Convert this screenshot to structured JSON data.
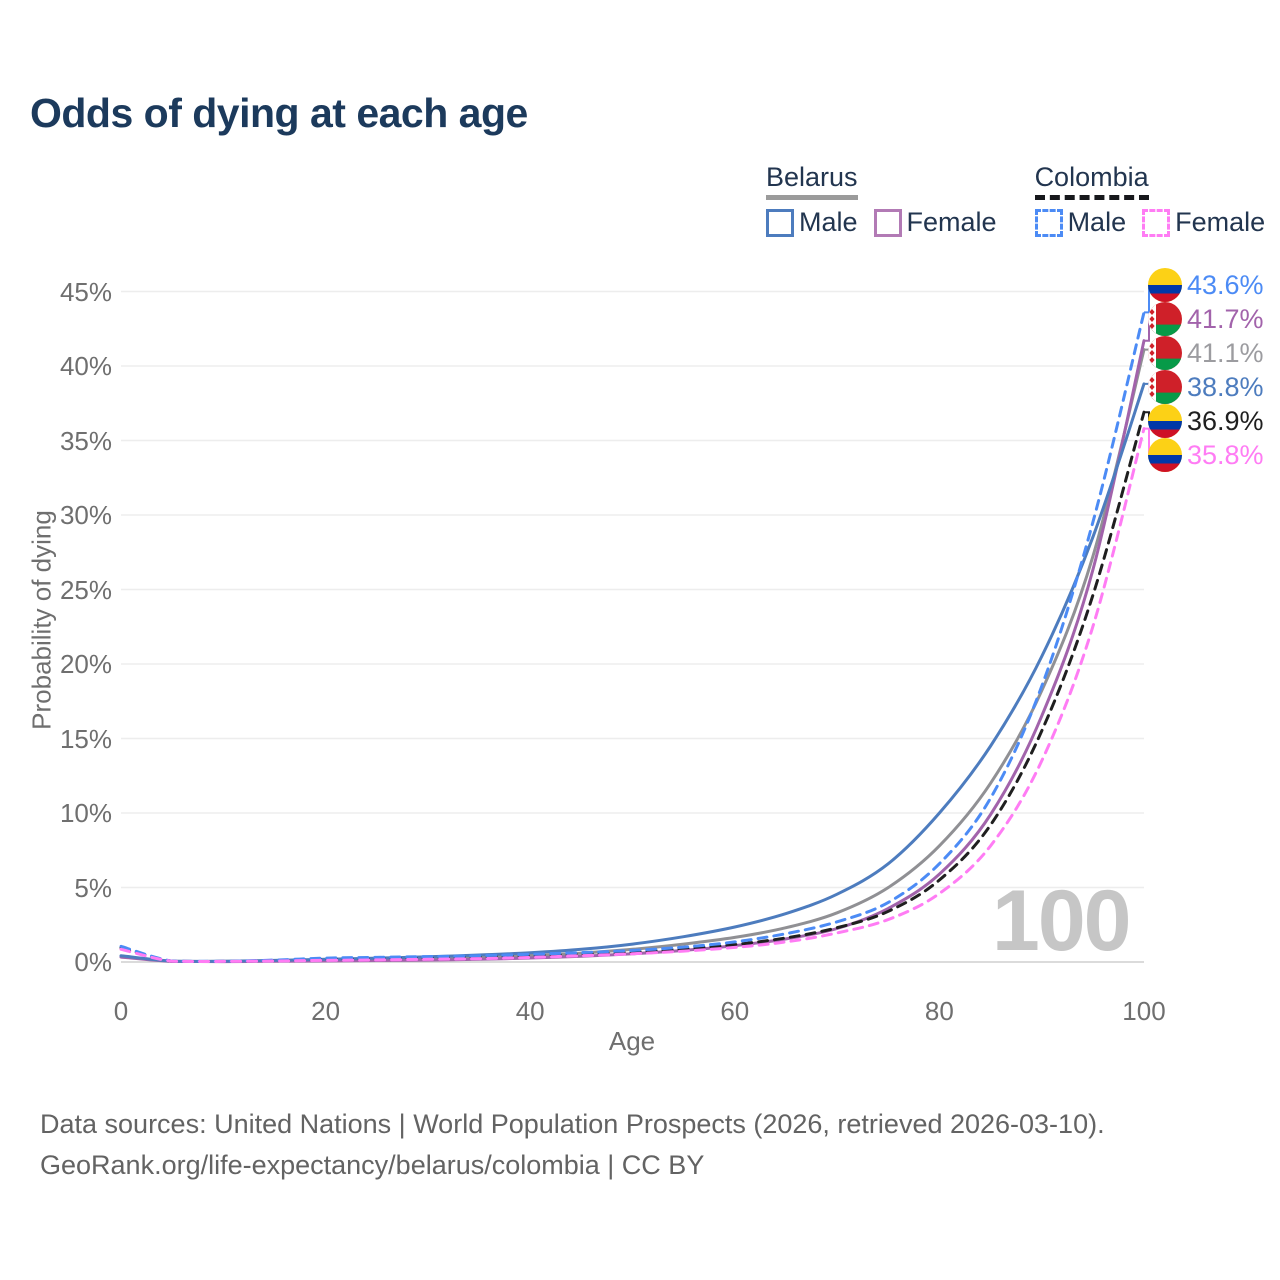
{
  "title": "Odds of dying at each age",
  "legend": {
    "groups": [
      {
        "country": "Belarus",
        "style": "solid",
        "underline_color": "#9b9b9b",
        "items": [
          {
            "label": "Male",
            "color": "#4d7cbe"
          },
          {
            "label": "Female",
            "color": "#b27ab5"
          }
        ]
      },
      {
        "country": "Colombia",
        "style": "dashed",
        "underline_color": "#17181c",
        "items": [
          {
            "label": "Male",
            "color": "#4c8bf5"
          },
          {
            "label": "Female",
            "color": "#ff7cf4"
          }
        ]
      }
    ]
  },
  "axes": {
    "x": {
      "title": "Age",
      "ticks": [
        0,
        20,
        40,
        60,
        80,
        100
      ],
      "min": 0,
      "max": 100
    },
    "y": {
      "title": "Probability of dying",
      "ticks": [
        "0%",
        "5%",
        "10%",
        "15%",
        "20%",
        "25%",
        "30%",
        "35%",
        "40%",
        "45%"
      ],
      "tick_values": [
        0,
        5,
        10,
        15,
        20,
        25,
        30,
        35,
        40,
        45
      ],
      "min": 0,
      "max": 45
    }
  },
  "watermark": "100",
  "footer": {
    "line1": "Data sources: United Nations | World Population Prospects (2026, retrieved 2026-03-10).",
    "line2": "GeoRank.org/life-expectancy/belarus/colombia | CC BY"
  },
  "chart_data": {
    "type": "line",
    "title": "Odds of dying at each age",
    "xlabel": "Age",
    "ylabel": "Probability of dying",
    "xlim": [
      0,
      100
    ],
    "ylim": [
      0,
      45
    ],
    "grid": true,
    "legend_position": "top-right",
    "x": [
      0,
      5,
      10,
      15,
      20,
      25,
      30,
      35,
      40,
      45,
      50,
      55,
      60,
      65,
      70,
      75,
      80,
      85,
      90,
      95,
      100
    ],
    "series": [
      {
        "id": "belarus-total",
        "name": "Belarus (both sexes)",
        "country": "belarus",
        "sex": "total",
        "line": "solid",
        "color": "#909094",
        "label_color": "#9c9ca0",
        "end_label": "41.1%",
        "values": [
          0.38,
          0.05,
          0.04,
          0.08,
          0.13,
          0.18,
          0.24,
          0.32,
          0.44,
          0.6,
          0.85,
          1.2,
          1.65,
          2.3,
          3.3,
          5.0,
          7.8,
          12.0,
          18.2,
          27.2,
          41.1
        ]
      },
      {
        "id": "belarus-female",
        "name": "Belarus Female",
        "country": "belarus",
        "sex": "female",
        "line": "solid",
        "color": "#a263ab",
        "label_color": "#a263ab",
        "end_label": "41.7%",
        "values": [
          0.33,
          0.04,
          0.03,
          0.05,
          0.07,
          0.1,
          0.13,
          0.18,
          0.27,
          0.38,
          0.55,
          0.78,
          1.1,
          1.55,
          2.25,
          3.6,
          5.9,
          9.9,
          16.5,
          26.3,
          41.7
        ]
      },
      {
        "id": "belarus-male",
        "name": "Belarus Male",
        "country": "belarus",
        "sex": "male",
        "line": "solid",
        "color": "#4d7cbe",
        "label_color": "#4d7cbe",
        "end_label": "38.8%",
        "values": [
          0.42,
          0.06,
          0.05,
          0.11,
          0.18,
          0.26,
          0.35,
          0.47,
          0.62,
          0.85,
          1.2,
          1.7,
          2.35,
          3.25,
          4.55,
          6.6,
          10.0,
          14.5,
          20.5,
          28.5,
          38.8
        ]
      },
      {
        "id": "colombia-total",
        "name": "Colombia (both sexes)",
        "country": "colombia",
        "sex": "total",
        "line": "dashed",
        "color": "#1f1f1f",
        "label_color": "#1f1f1f",
        "end_label": "36.9%",
        "values": [
          0.95,
          0.05,
          0.04,
          0.1,
          0.2,
          0.24,
          0.28,
          0.34,
          0.43,
          0.53,
          0.67,
          0.88,
          1.17,
          1.62,
          2.3,
          3.4,
          5.5,
          9.2,
          15.5,
          24.6,
          36.9
        ]
      },
      {
        "id": "colombia-male",
        "name": "Colombia Male",
        "country": "colombia",
        "sex": "male",
        "line": "dashed",
        "color": "#4c8bf5",
        "label_color": "#4c8bf5",
        "end_label": "43.6%",
        "values": [
          1.05,
          0.06,
          0.05,
          0.13,
          0.26,
          0.31,
          0.36,
          0.42,
          0.52,
          0.63,
          0.78,
          1.0,
          1.35,
          1.9,
          2.7,
          4.0,
          6.6,
          11.0,
          18.5,
          29.5,
          43.6
        ]
      },
      {
        "id": "colombia-female",
        "name": "Colombia Female",
        "country": "colombia",
        "sex": "female",
        "line": "dashed",
        "color": "#ff7cf4",
        "label_color": "#ff7cf4",
        "end_label": "35.8%",
        "values": [
          0.85,
          0.05,
          0.04,
          0.07,
          0.11,
          0.14,
          0.18,
          0.23,
          0.31,
          0.42,
          0.55,
          0.73,
          0.98,
          1.35,
          1.95,
          2.85,
          4.6,
          7.8,
          13.5,
          22.5,
          35.8
        ]
      }
    ]
  }
}
